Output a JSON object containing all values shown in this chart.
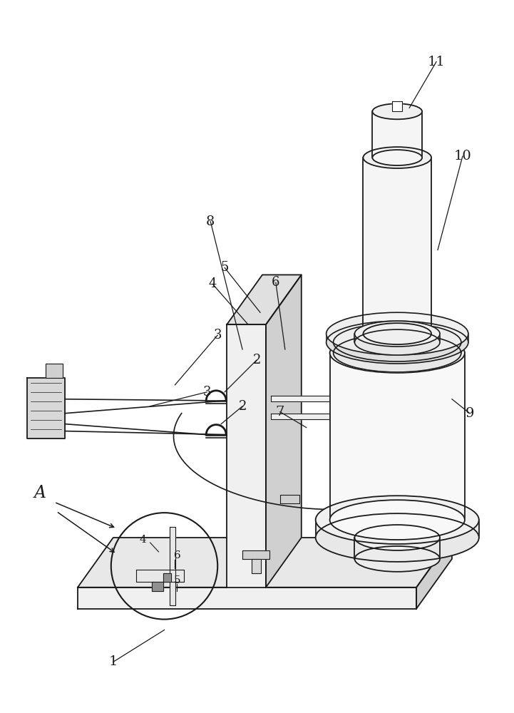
{
  "bg_color": "#ffffff",
  "line_color": "#1a1a1a",
  "light_gray": "#f0f0f0",
  "mid_gray": "#d0d0d0",
  "dark_gray": "#909090",
  "fig_width": 7.21,
  "fig_height": 10.0
}
